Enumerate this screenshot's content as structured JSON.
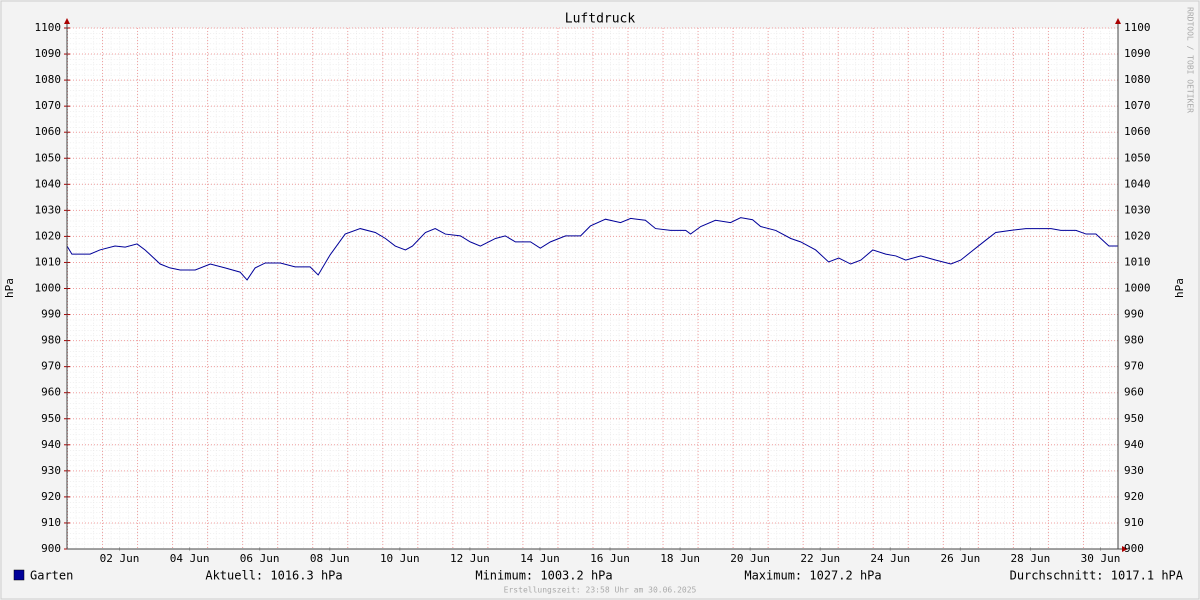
{
  "chart_data": {
    "type": "line",
    "title": "Luftdruck",
    "y_label": "hPa",
    "watermark": "RRDTOOL / TOBI OETIKER",
    "footer": "Erstellungszeit: 23:58 Uhr am 30.06.2025",
    "stats": [
      "Aktuell: 1016.3 hPa",
      "Minimum: 1003.2 hPa",
      "Maximum: 1027.2 hPa",
      "Durchschnitt: 1017.1 hPA"
    ],
    "xlim": [
      1,
      31
    ],
    "ylim": [
      900,
      1100
    ],
    "yticks": [
      900,
      910,
      920,
      930,
      940,
      950,
      960,
      970,
      980,
      990,
      1000,
      1010,
      1020,
      1030,
      1040,
      1050,
      1060,
      1070,
      1080,
      1090,
      1100
    ],
    "xticks": [
      {
        "value": 2.5,
        "label": "02 Jun"
      },
      {
        "value": 4.5,
        "label": "04 Jun"
      },
      {
        "value": 6.5,
        "label": "06 Jun"
      },
      {
        "value": 8.5,
        "label": "08 Jun"
      },
      {
        "value": 10.5,
        "label": "10 Jun"
      },
      {
        "value": 12.5,
        "label": "12 Jun"
      },
      {
        "value": 14.5,
        "label": "14 Jun"
      },
      {
        "value": 16.5,
        "label": "16 Jun"
      },
      {
        "value": 18.5,
        "label": "18 Jun"
      },
      {
        "value": 20.5,
        "label": "20 Jun"
      },
      {
        "value": 22.5,
        "label": "22 Jun"
      },
      {
        "value": 24.5,
        "label": "24 Jun"
      },
      {
        "value": 26.5,
        "label": "26 Jun"
      },
      {
        "value": 28.5,
        "label": "28 Jun"
      },
      {
        "value": 30.5,
        "label": "30 Jun"
      }
    ],
    "grid": true,
    "x": [
      1.0,
      1.14,
      1.66,
      1.94,
      2.37,
      2.66,
      3.0,
      3.23,
      3.66,
      3.94,
      4.23,
      4.66,
      5.09,
      5.51,
      5.94,
      6.14,
      6.37,
      6.66,
      7.09,
      7.51,
      7.94,
      8.17,
      8.51,
      8.94,
      9.37,
      9.8,
      10.09,
      10.37,
      10.66,
      10.86,
      11.23,
      11.51,
      11.8,
      12.23,
      12.51,
      12.8,
      13.23,
      13.51,
      13.8,
      14.23,
      14.51,
      14.8,
      15.23,
      15.66,
      15.94,
      16.37,
      16.8,
      17.09,
      17.51,
      17.8,
      18.23,
      18.66,
      18.8,
      19.09,
      19.51,
      19.94,
      20.23,
      20.57,
      20.8,
      21.23,
      21.66,
      21.94,
      22.37,
      22.74,
      23.03,
      23.37,
      23.66,
      24.0,
      24.37,
      24.66,
      24.94,
      25.37,
      25.8,
      26.23,
      26.51,
      26.8,
      27.23,
      27.51,
      27.94,
      28.37,
      28.8,
      29.09,
      29.37,
      29.8,
      30.09,
      30.37,
      30.74,
      31.0
    ],
    "series": [
      {
        "name": "Garten",
        "color": "#000099",
        "values": [
          1016.3,
          1013.2,
          1013.2,
          1014.8,
          1016.3,
          1015.9,
          1017.1,
          1014.8,
          1009.4,
          1007.9,
          1007.1,
          1007.1,
          1009.4,
          1007.9,
          1006.3,
          1003.3,
          1007.9,
          1009.8,
          1009.8,
          1008.3,
          1008.3,
          1005.2,
          1012.9,
          1020.9,
          1023.0,
          1021.5,
          1019.2,
          1016.3,
          1014.8,
          1016.3,
          1021.5,
          1023.0,
          1020.9,
          1020.2,
          1017.9,
          1016.3,
          1019.2,
          1020.2,
          1017.9,
          1017.9,
          1015.5,
          1017.9,
          1020.2,
          1020.2,
          1024.0,
          1026.6,
          1025.3,
          1026.9,
          1026.2,
          1023.0,
          1022.3,
          1022.3,
          1020.9,
          1023.8,
          1026.2,
          1025.3,
          1027.2,
          1026.4,
          1023.8,
          1022.3,
          1019.2,
          1017.9,
          1014.8,
          1010.2,
          1011.7,
          1009.4,
          1010.9,
          1014.8,
          1013.2,
          1012.5,
          1010.9,
          1012.5,
          1010.9,
          1009.4,
          1010.9,
          1014.0,
          1018.6,
          1021.5,
          1022.3,
          1023.0,
          1023.0,
          1023.0,
          1022.3,
          1022.3,
          1020.9,
          1020.9,
          1016.3,
          1016.3
        ]
      }
    ]
  }
}
